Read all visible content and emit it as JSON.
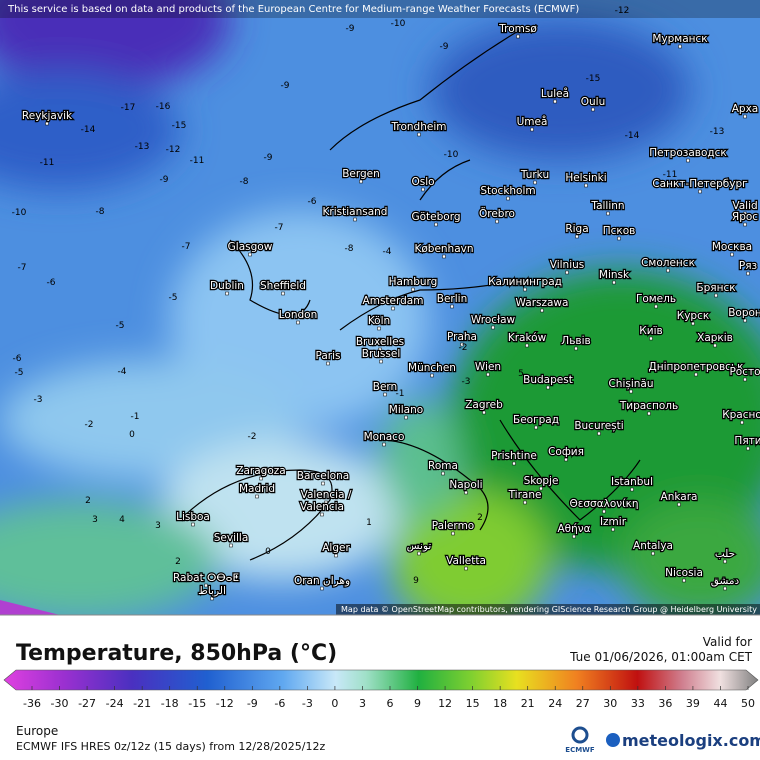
{
  "header": {
    "notice": "This service is based on data and products of the European Centre for Medium-range Weather Forecasts (ECMWF)"
  },
  "map": {
    "cities": [
      "Tromsø",
      "Мурманск",
      "Luleå",
      "Oulu",
      "Reykjavik",
      "Umeå",
      "Trondheim",
      "Арха",
      "Петрозаводск",
      "Bergen",
      "Turku",
      "Helsinki",
      "Oslo",
      "Санкт-Петербург",
      "Stockholm",
      "Kristiansand",
      "Göteborg",
      "Örebro",
      "Tallinn",
      "Valid",
      "Ярос",
      "Псков",
      "Riga",
      "Glasgow",
      "København",
      "Москва",
      "Vilnius",
      "Смоленск",
      "Ряз",
      "Minsk",
      "Dublin",
      "Sheffield",
      "Hamburg",
      "Калининград",
      "Брянск",
      "Гомель",
      "Berlin",
      "Amsterdam",
      "Warszawa",
      "London",
      "Курск",
      "Ворон",
      "Köln",
      "Wrocław",
      "Київ",
      "Bruxelles",
      "Praha",
      "Kraków",
      "Львів",
      "Харків",
      "Brussel",
      "Paris",
      "München",
      "Wien",
      "Дніпропетровськ",
      "Росто",
      "Chișinău",
      "Bern",
      "Budapest",
      "Тирасполь",
      "Milano",
      "Zagreb",
      "Красно",
      "Београд",
      "București",
      "Monaco",
      "Пяти",
      "Prishtine",
      "София",
      "Zaragoza",
      "Barcelona",
      "Roma",
      "Istanbul",
      "Madrid",
      "Napoli",
      "Skopje",
      "Tirane",
      "Θεσσαλονίκη",
      "Ankara",
      "Valencia /",
      "Valencia",
      "Lisboa",
      "Izmir",
      "Αθήνα",
      "Sevilla",
      "Palermo",
      "Antalya",
      "حلب",
      "Alger",
      "تونس",
      "Valletta",
      "Nicosia",
      "Rabat ⵔⴱⴰⵟ",
      "الرباط",
      "Oran وهران",
      "دمشق"
    ],
    "contour_labels": [
      -9,
      -10,
      -9,
      -9,
      -16,
      -17,
      -15,
      -14,
      -12,
      -11,
      -13,
      -11,
      -10,
      -9,
      -8,
      -9,
      -8,
      -7,
      -8,
      -7,
      -6,
      -5,
      -5,
      -6,
      -5,
      -4,
      -3,
      -1,
      0,
      -2,
      -2,
      -1,
      2,
      3,
      4,
      3,
      2,
      0,
      1,
      2,
      9,
      5,
      -13,
      -14,
      -15,
      -12,
      -10,
      -6,
      -7,
      -4,
      -2,
      -3,
      -11
    ],
    "attribution": "Map data © OpenStreetMap contributors, rendering GIScience Research Group @ Heidelberg University"
  },
  "legend": {
    "title": "Temperature, 850hPa (°C)",
    "valid_label": "Valid for",
    "valid_time": "Tue 01/06/2026, 01:00am CET",
    "ticks": [
      -36,
      -30,
      -27,
      -24,
      -21,
      -18,
      -15,
      -12,
      -9,
      -6,
      -3,
      0,
      3,
      6,
      9,
      12,
      15,
      18,
      21,
      24,
      27,
      30,
      33,
      36,
      39,
      44,
      50
    ]
  },
  "footer": {
    "region": "Europe",
    "model": "ECMWF IFS HRES 0z/12z (15 days) from 12/28/2025/12z",
    "logo_small": "ECMWF",
    "logo": "meteologix.com"
  }
}
